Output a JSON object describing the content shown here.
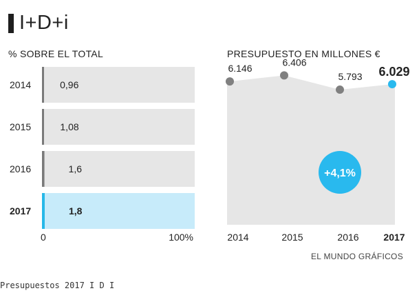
{
  "header": {
    "title": "I+D+i"
  },
  "footer": {
    "credit": "EL MUNDO GRÁFICOS",
    "caption": "Presupuestos 2017 I D I"
  },
  "colors": {
    "panel": "#e6e6e6",
    "highlight_panel": "#c7ebfa",
    "bar": "#7a7a7a",
    "highlight_bar": "#27b8e8",
    "dot": "#808080",
    "highlight_dot": "#29b9ee"
  },
  "chart_data": [
    {
      "type": "bar",
      "subtitle": "% SOBRE EL TOTAL",
      "orientation": "horizontal",
      "categories": [
        "2014",
        "2015",
        "2016",
        "2017"
      ],
      "values": [
        0.96,
        1.08,
        1.6,
        1.8
      ],
      "value_labels": [
        "0,96",
        "1,08",
        "1,6",
        "1,8"
      ],
      "highlight": "2017",
      "xlim": [
        0,
        100
      ],
      "x_tick_labels": [
        "0",
        "100%"
      ]
    },
    {
      "type": "area",
      "subtitle": "PRESUPUESTO EN MILLONES €",
      "x": [
        "2014",
        "2015",
        "2016",
        "2017"
      ],
      "values": [
        6146,
        6406,
        5793,
        6029
      ],
      "value_labels": [
        "6.146",
        "6.406",
        "5.793",
        "6.029"
      ],
      "highlight": "2017",
      "annotation": "+4,1%",
      "ylim": [
        0,
        6800
      ]
    }
  ]
}
